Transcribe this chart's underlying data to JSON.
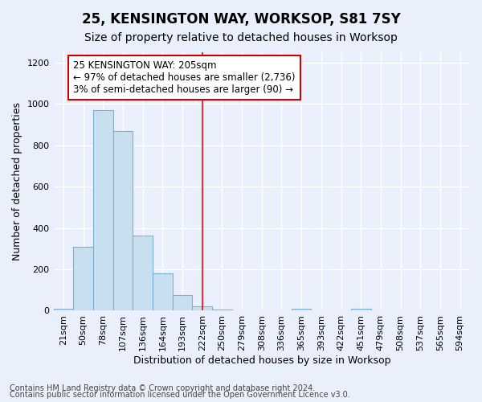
{
  "title": "25, KENSINGTON WAY, WORKSOP, S81 7SY",
  "subtitle": "Size of property relative to detached houses in Worksop",
  "xlabel": "Distribution of detached houses by size in Worksop",
  "ylabel": "Number of detached properties",
  "footer1": "Contains HM Land Registry data © Crown copyright and database right 2024.",
  "footer2": "Contains public sector information licensed under the Open Government Licence v3.0.",
  "categories": [
    "21sqm",
    "50sqm",
    "78sqm",
    "107sqm",
    "136sqm",
    "164sqm",
    "193sqm",
    "222sqm",
    "250sqm",
    "279sqm",
    "308sqm",
    "336sqm",
    "365sqm",
    "393sqm",
    "422sqm",
    "451sqm",
    "479sqm",
    "508sqm",
    "537sqm",
    "565sqm",
    "594sqm"
  ],
  "values": [
    10,
    310,
    970,
    870,
    365,
    180,
    75,
    22,
    5,
    0,
    0,
    0,
    10,
    0,
    0,
    10,
    0,
    0,
    0,
    0,
    0
  ],
  "bar_color": "#c8dff0",
  "bar_edge_color": "#7bafd4",
  "bar_alpha": 1.0,
  "red_line_x": 7.0,
  "annotation_line1": "25 KENSINGTON WAY: 205sqm",
  "annotation_line2": "← 97% of detached houses are smaller (2,736)",
  "annotation_line3": "3% of semi-detached houses are larger (90) →",
  "annotation_box_color": "#ffffff",
  "annotation_border_color": "#cc0000",
  "ylim": [
    0,
    1250
  ],
  "yticks": [
    0,
    200,
    400,
    600,
    800,
    1000,
    1200
  ],
  "bg_color": "#eaf0fb",
  "grid_color": "#ffffff",
  "title_fontsize": 12,
  "subtitle_fontsize": 10,
  "axis_label_fontsize": 9,
  "tick_fontsize": 8,
  "footer_fontsize": 7,
  "annotation_fontsize": 8.5
}
